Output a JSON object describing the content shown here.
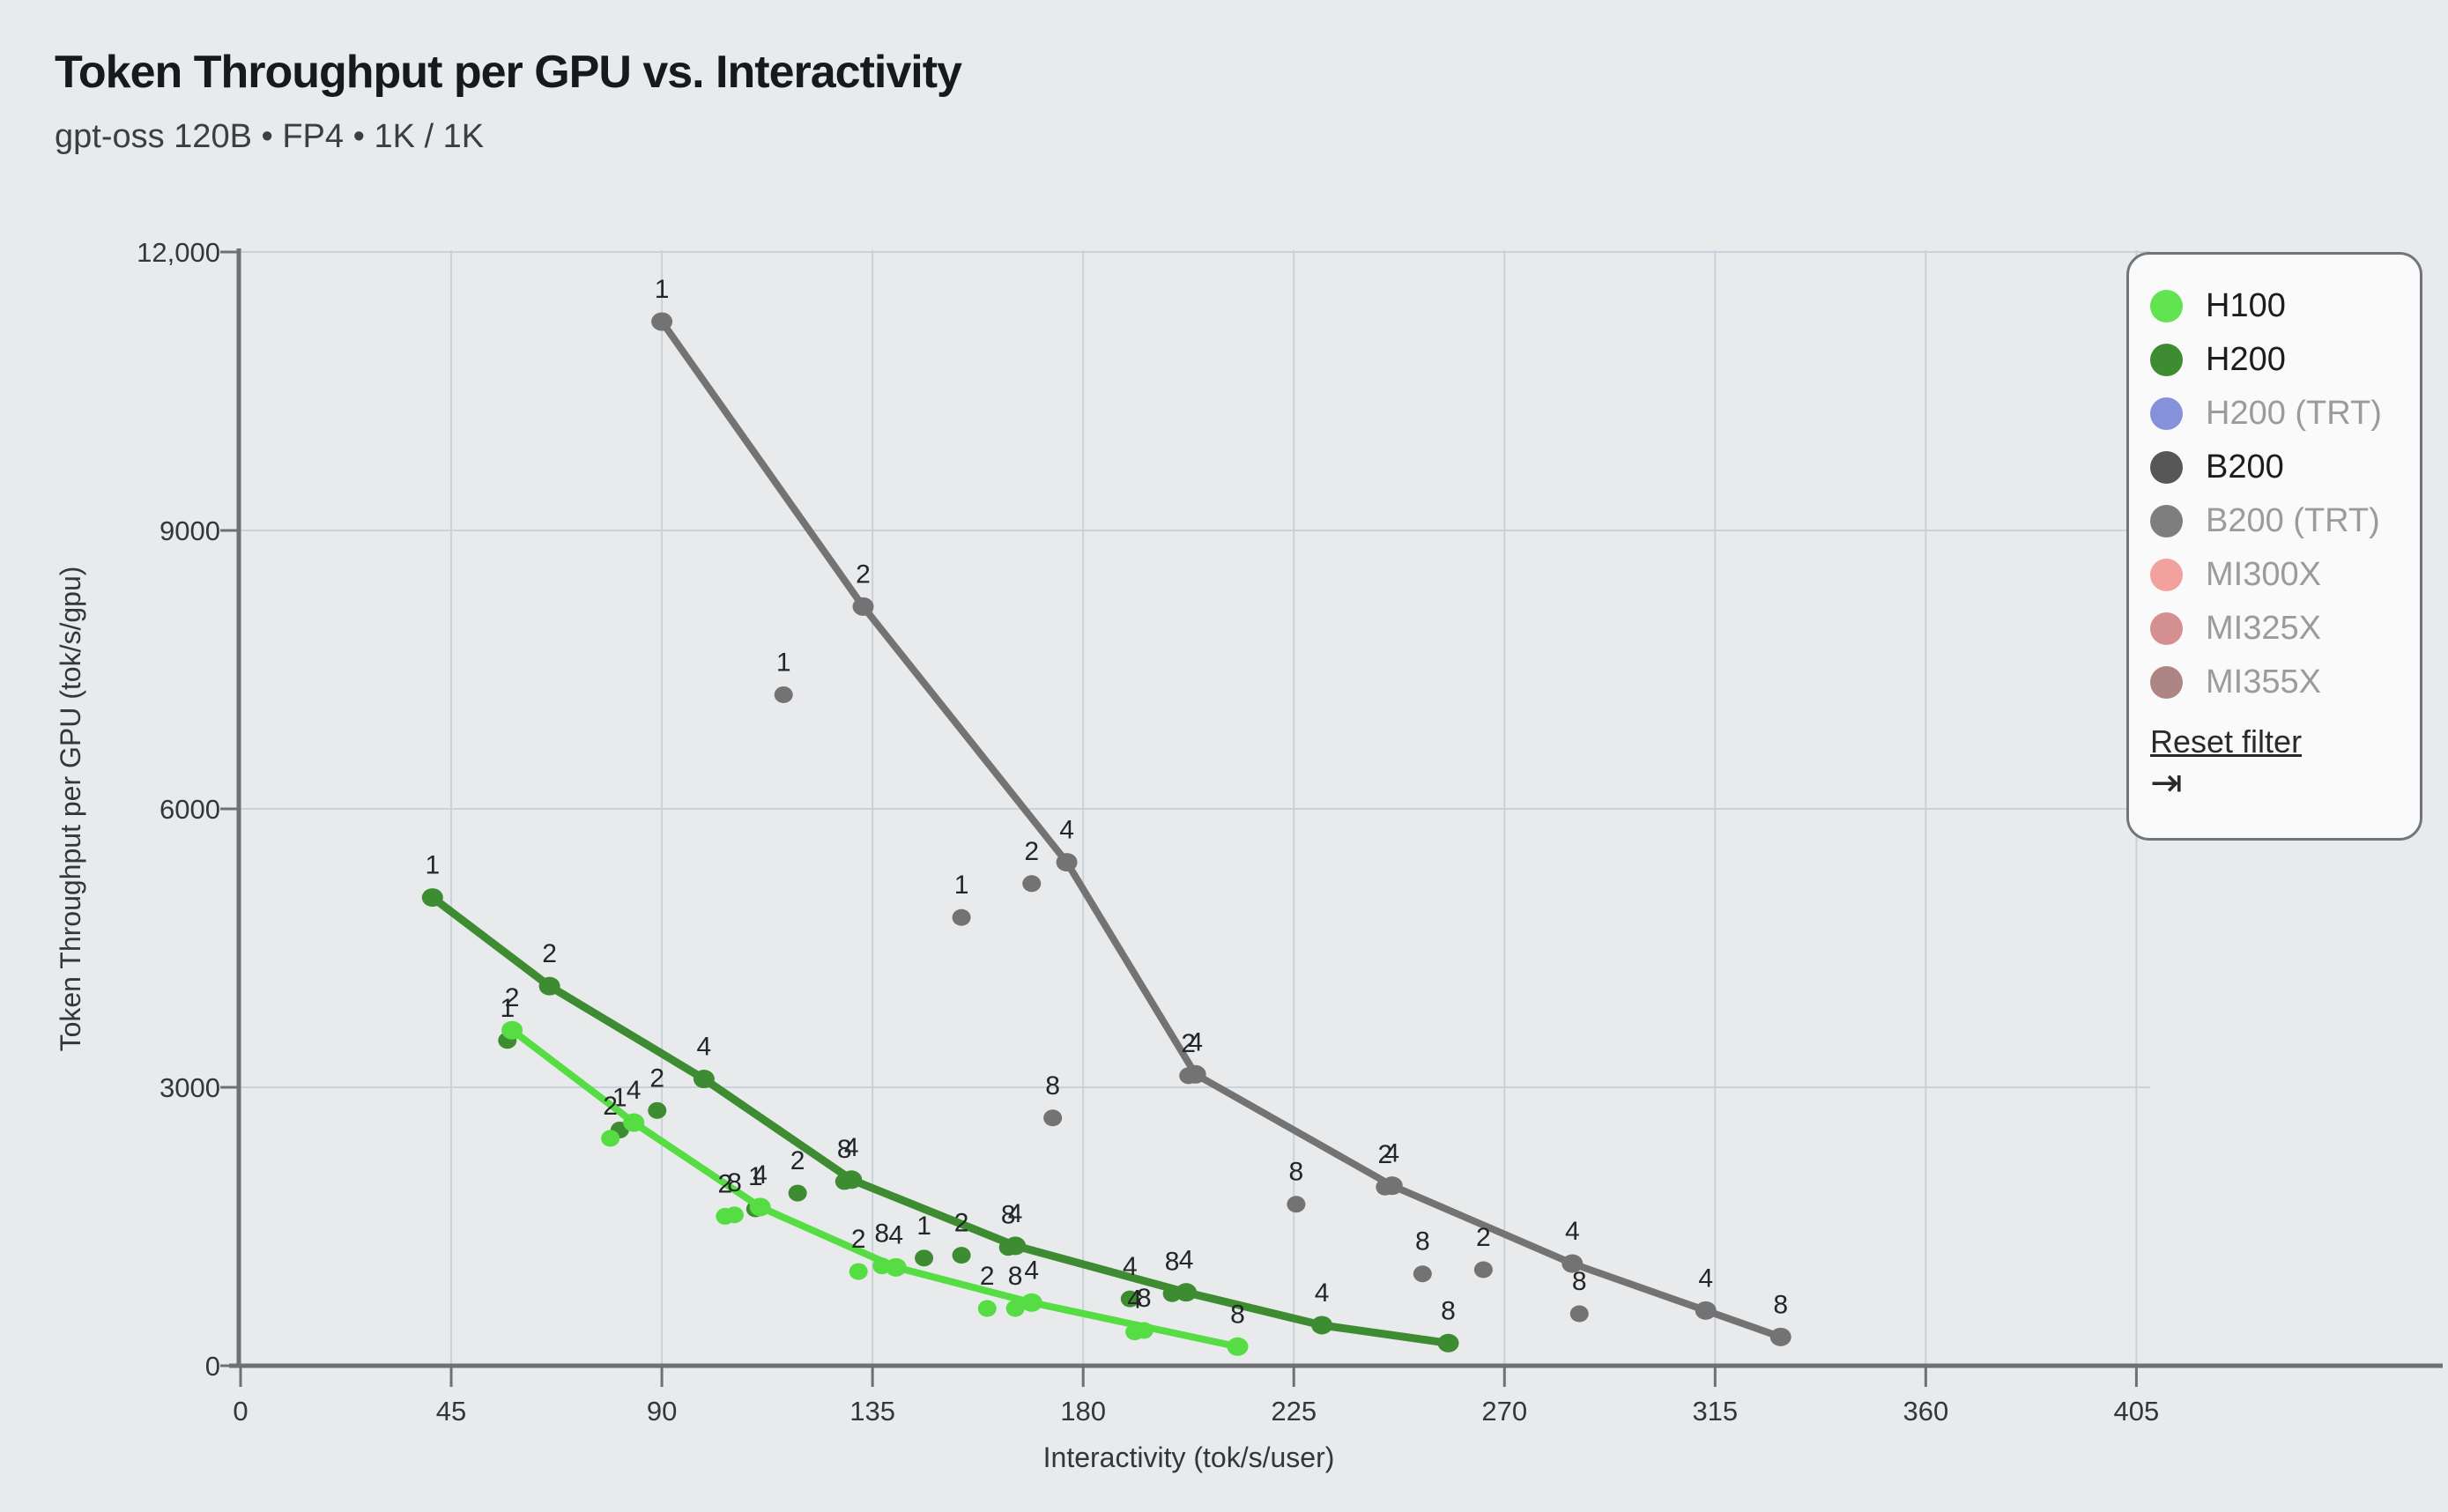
{
  "header": {
    "title": "Token Throughput per GPU vs. Interactivity",
    "subtitle": "gpt-oss 120B • FP4 • 1K / 1K"
  },
  "legend": {
    "items": [
      {
        "label": "H100",
        "color": "#62E350",
        "active": true
      },
      {
        "label": "H200",
        "color": "#3E8C31",
        "active": true
      },
      {
        "label": "H200 (TRT)",
        "color": "#8591D9",
        "active": false
      },
      {
        "label": "B200",
        "color": "#575757",
        "active": true
      },
      {
        "label": "B200 (TRT)",
        "color": "#7E7E7E",
        "active": false
      },
      {
        "label": "MI300X",
        "color": "#F2A19E",
        "active": false
      },
      {
        "label": "MI325X",
        "color": "#D49090",
        "active": false
      },
      {
        "label": "MI355X",
        "color": "#AD8585",
        "active": false
      }
    ],
    "reset_label": "Reset filter",
    "collapse_icon": "⇥"
  },
  "axes": {
    "x": {
      "label": "Interactivity (tok/s/user)",
      "min": 0,
      "max": 405,
      "ticks": [
        0,
        45,
        90,
        135,
        180,
        225,
        270,
        315,
        360,
        405
      ]
    },
    "y": {
      "label": "Token Throughput per GPU (tok/s/gpu)",
      "min": 0,
      "max": 12000,
      "ticks": [
        0,
        3000,
        6000,
        9000,
        12000
      ],
      "tick_labels": [
        "0",
        "3000",
        "6000",
        "9000",
        "12,000"
      ]
    }
  },
  "chart_data": {
    "type": "scatter",
    "title": "Token Throughput per GPU vs. Interactivity",
    "subtitle": "gpt-oss 120B • FP4 • 1K / 1K",
    "xlabel": "Interactivity (tok/s/user)",
    "ylabel": "Token Throughput per GPU (tok/s/gpu)",
    "xlim": [
      0,
      405
    ],
    "ylim": [
      0,
      12000
    ],
    "grid": true,
    "legend_position": "top-right",
    "series": [
      {
        "name": "B200",
        "color": "#737373",
        "points": [
          {
            "x": 90,
            "y": 11250,
            "label": "1",
            "on_line": true
          },
          {
            "x": 116,
            "y": 7230,
            "label": "1",
            "on_line": false
          },
          {
            "x": 133,
            "y": 8180,
            "label": "2",
            "on_line": true
          },
          {
            "x": 154,
            "y": 4830,
            "label": "1",
            "on_line": false
          },
          {
            "x": 169,
            "y": 5195,
            "label": "2",
            "on_line": false
          },
          {
            "x": 173.5,
            "y": 2670,
            "label": "8",
            "on_line": false
          },
          {
            "x": 176.5,
            "y": 5425,
            "label": "4",
            "on_line": true
          },
          {
            "x": 202.5,
            "y": 3125,
            "label": "2",
            "on_line": false
          },
          {
            "x": 204,
            "y": 3140,
            "label": "4",
            "on_line": true
          },
          {
            "x": 225.5,
            "y": 1740,
            "label": "8",
            "on_line": false
          },
          {
            "x": 244.5,
            "y": 1925,
            "label": "2",
            "on_line": false
          },
          {
            "x": 246,
            "y": 1940,
            "label": "4",
            "on_line": true
          },
          {
            "x": 252.5,
            "y": 990,
            "label": "8",
            "on_line": false
          },
          {
            "x": 265.5,
            "y": 1035,
            "label": "2",
            "on_line": false
          },
          {
            "x": 284.5,
            "y": 1101,
            "label": "4",
            "on_line": true
          },
          {
            "x": 286,
            "y": 560,
            "label": "8",
            "on_line": false
          },
          {
            "x": 313,
            "y": 595,
            "label": "4",
            "on_line": true
          },
          {
            "x": 329,
            "y": 310,
            "label": "8",
            "on_line": true
          }
        ]
      },
      {
        "name": "H200",
        "color": "#3E8C31",
        "points": [
          {
            "x": 41,
            "y": 5045,
            "label": "1",
            "on_line": true
          },
          {
            "x": 57,
            "y": 3505,
            "label": "1",
            "on_line": false
          },
          {
            "x": 66,
            "y": 4090,
            "label": "2",
            "on_line": true
          },
          {
            "x": 81,
            "y": 2540,
            "label": "1",
            "on_line": false
          },
          {
            "x": 89,
            "y": 2750,
            "label": "2",
            "on_line": false
          },
          {
            "x": 99,
            "y": 3090,
            "label": "4",
            "on_line": true
          },
          {
            "x": 110,
            "y": 1690,
            "label": "1",
            "on_line": false
          },
          {
            "x": 119,
            "y": 1860,
            "label": "2",
            "on_line": false
          },
          {
            "x": 129,
            "y": 1985,
            "label": "8",
            "on_line": false
          },
          {
            "x": 130.5,
            "y": 2005,
            "label": "4",
            "on_line": true
          },
          {
            "x": 146,
            "y": 1160,
            "label": "1",
            "on_line": false
          },
          {
            "x": 154,
            "y": 1190,
            "label": "2",
            "on_line": false
          },
          {
            "x": 164,
            "y": 1275,
            "label": "8",
            "on_line": false
          },
          {
            "x": 165.5,
            "y": 1292,
            "label": "4",
            "on_line": true
          },
          {
            "x": 190,
            "y": 720,
            "label": "4",
            "on_line": false
          },
          {
            "x": 199,
            "y": 776,
            "label": "8",
            "on_line": false
          },
          {
            "x": 202,
            "y": 791,
            "label": "4",
            "on_line": true
          },
          {
            "x": 231,
            "y": 437,
            "label": "4",
            "on_line": true
          },
          {
            "x": 258,
            "y": 244,
            "label": "8",
            "on_line": true
          }
        ]
      },
      {
        "name": "H100",
        "color": "#56DD44",
        "points": [
          {
            "x": 58,
            "y": 3615,
            "label": "2",
            "on_line": true
          },
          {
            "x": 79,
            "y": 2450,
            "label": "2",
            "on_line": false
          },
          {
            "x": 84,
            "y": 2620,
            "label": "4",
            "on_line": true
          },
          {
            "x": 103.5,
            "y": 1610,
            "label": "2",
            "on_line": false
          },
          {
            "x": 105.5,
            "y": 1625,
            "label": "8",
            "on_line": false
          },
          {
            "x": 111,
            "y": 1710,
            "label": "4",
            "on_line": true
          },
          {
            "x": 132,
            "y": 1015,
            "label": "2",
            "on_line": false
          },
          {
            "x": 137,
            "y": 1076,
            "label": "8",
            "on_line": false
          },
          {
            "x": 140,
            "y": 1060,
            "label": "4",
            "on_line": true
          },
          {
            "x": 159.5,
            "y": 617,
            "label": "2",
            "on_line": false
          },
          {
            "x": 165.5,
            "y": 617,
            "label": "8",
            "on_line": false
          },
          {
            "x": 169,
            "y": 681,
            "label": "4",
            "on_line": true
          },
          {
            "x": 191,
            "y": 364,
            "label": "4",
            "on_line": false
          },
          {
            "x": 193,
            "y": 380,
            "label": "8",
            "on_line": false
          },
          {
            "x": 213,
            "y": 206,
            "label": "8",
            "on_line": true
          }
        ]
      }
    ]
  }
}
